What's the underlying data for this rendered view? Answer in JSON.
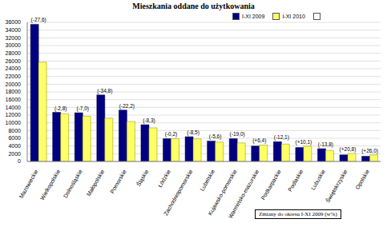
{
  "chart_data": {
    "type": "bar",
    "title": "Mieszkania oddane do użytkowania",
    "categories": [
      "Mazowieckie",
      "Wielkopolskie",
      "Dolnośląskie",
      "Małopolskie",
      "Pomorskie",
      "Śląskie",
      "Łódzkie",
      "Zachodniopomorskie",
      "Lubelskie",
      "Kujawsko-pomorskie",
      "Warmińsko-mazurskie",
      "Podkarpackie",
      "Podlaskie",
      "Lubuskie",
      "Świętokrzyskie",
      "Opolskie"
    ],
    "series": [
      {
        "name": "I-XI 2009",
        "color": "#000080",
        "values": [
          35500,
          12700,
          12600,
          17200,
          13300,
          9500,
          5900,
          6400,
          5300,
          5900,
          4000,
          5100,
          3600,
          3300,
          1700,
          1350
        ]
      },
      {
        "name": "I-XI 2010",
        "color": "#ffff66",
        "values": [
          25700,
          12350,
          11700,
          11200,
          10350,
          8700,
          5900,
          5850,
          5000,
          4800,
          4250,
          4500,
          3950,
          2850,
          2050,
          1700
        ]
      }
    ],
    "changes": [
      "(-27,6)",
      "(-2,8)",
      "(-7,0)",
      "(-34,8)",
      "(-22,2)",
      "(-8,3)",
      "(-0,2)",
      "(-8,5)",
      "(-5,6)",
      "(-19,0)",
      "(+6,4)",
      "(-12,1)",
      "(+10,1)",
      "(-13,8)",
      "(+20,8)",
      "(+26,0)"
    ],
    "note": "Zmiany do okresu I-XI 2009 (w%)",
    "ylim": [
      0,
      36000
    ],
    "yticks": [
      0,
      2000,
      4000,
      6000,
      8000,
      10000,
      12000,
      14000,
      16000,
      18000,
      20000,
      22000,
      24000,
      26000,
      28000,
      30000,
      32000,
      34000,
      36000
    ],
    "grid": true
  }
}
